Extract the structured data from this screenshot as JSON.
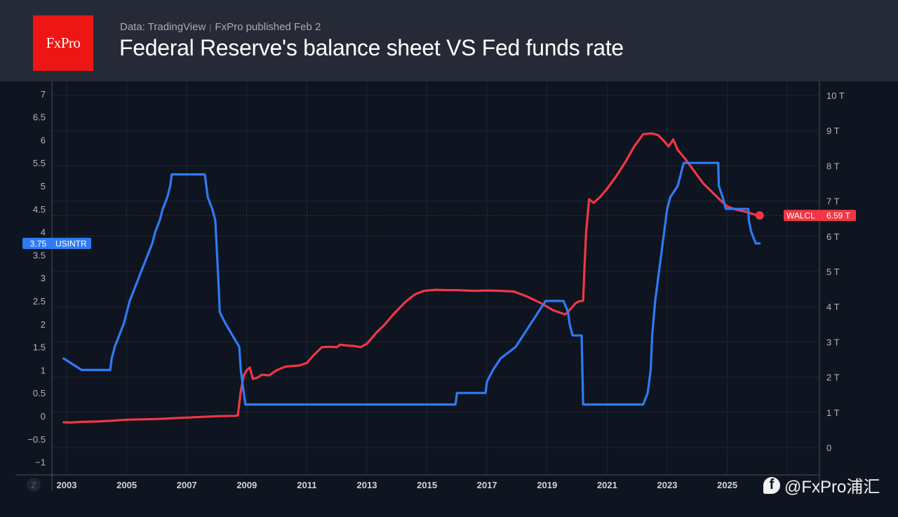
{
  "header": {
    "logo_text": "FxPro",
    "source": "Data: TradingView",
    "published": "FxPro published Feb 2",
    "title": "Federal Reserve's balance sheet VS Fed funds rate"
  },
  "watermark": {
    "icon": "facebook-icon",
    "text": "@FxPro浦汇"
  },
  "chart_data": {
    "type": "line",
    "title": "Federal Reserve's balance sheet VS Fed funds rate",
    "xlabel": "",
    "x_ticks": [
      "2003",
      "2005",
      "2007",
      "2009",
      "2011",
      "2013",
      "2015",
      "2017",
      "2019",
      "2021",
      "2023",
      "2025"
    ],
    "xlim": [
      2002.5,
      2027.0
    ],
    "left_axis": {
      "ticks": [
        "7",
        "6.5",
        "6",
        "5.5",
        "5",
        "4.5",
        "4",
        "3.5",
        "3",
        "2.5",
        "2",
        "1.5",
        "1",
        "0.5",
        "0",
        "−0.5",
        "−1"
      ],
      "ylim": [
        -1,
        7
      ]
    },
    "right_axis": {
      "ticks": [
        "10 T",
        "9 T",
        "8 T",
        "7 T",
        "6 T",
        "5 T",
        "4 T",
        "3 T",
        "2 T",
        "1 T",
        "0"
      ],
      "ylim": [
        -0.7,
        10.2
      ],
      "unit": "T"
    },
    "grid": true,
    "scale_button": "Z",
    "series": [
      {
        "name": "USINTR",
        "axis": "left",
        "color": "#2f7bf5",
        "last_value": "3.75",
        "step": true,
        "points": [
          [
            2002.9,
            1.25
          ],
          [
            2003.5,
            1.0
          ],
          [
            2004.45,
            1.0
          ],
          [
            2004.5,
            1.25
          ],
          [
            2004.6,
            1.5
          ],
          [
            2004.75,
            1.75
          ],
          [
            2004.9,
            2.0
          ],
          [
            2005.0,
            2.25
          ],
          [
            2005.1,
            2.5
          ],
          [
            2005.25,
            2.75
          ],
          [
            2005.4,
            3.0
          ],
          [
            2005.55,
            3.25
          ],
          [
            2005.7,
            3.5
          ],
          [
            2005.85,
            3.75
          ],
          [
            2005.95,
            4.0
          ],
          [
            2006.1,
            4.25
          ],
          [
            2006.2,
            4.5
          ],
          [
            2006.35,
            4.75
          ],
          [
            2006.45,
            5.0
          ],
          [
            2006.5,
            5.25
          ],
          [
            2007.6,
            5.25
          ],
          [
            2007.7,
            4.75
          ],
          [
            2007.85,
            4.5
          ],
          [
            2007.95,
            4.25
          ],
          [
            2008.05,
            3.0
          ],
          [
            2008.1,
            2.25
          ],
          [
            2008.3,
            2.0
          ],
          [
            2008.75,
            1.5
          ],
          [
            2008.8,
            1.0
          ],
          [
            2008.95,
            0.25
          ],
          [
            2015.95,
            0.25
          ],
          [
            2016.0,
            0.5
          ],
          [
            2016.95,
            0.5
          ],
          [
            2017.0,
            0.75
          ],
          [
            2017.2,
            1.0
          ],
          [
            2017.45,
            1.25
          ],
          [
            2017.95,
            1.5
          ],
          [
            2018.2,
            1.75
          ],
          [
            2018.45,
            2.0
          ],
          [
            2018.7,
            2.25
          ],
          [
            2018.95,
            2.5
          ],
          [
            2019.55,
            2.5
          ],
          [
            2019.7,
            2.25
          ],
          [
            2019.75,
            2.0
          ],
          [
            2019.85,
            1.75
          ],
          [
            2020.15,
            1.75
          ],
          [
            2020.2,
            0.25
          ],
          [
            2022.2,
            0.25
          ],
          [
            2022.35,
            0.5
          ],
          [
            2022.45,
            1.0
          ],
          [
            2022.5,
            1.75
          ],
          [
            2022.6,
            2.5
          ],
          [
            2022.75,
            3.25
          ],
          [
            2022.9,
            4.0
          ],
          [
            2023.0,
            4.5
          ],
          [
            2023.1,
            4.75
          ],
          [
            2023.35,
            5.0
          ],
          [
            2023.45,
            5.25
          ],
          [
            2023.55,
            5.5
          ],
          [
            2024.7,
            5.5
          ],
          [
            2024.72,
            5.0
          ],
          [
            2024.85,
            4.75
          ],
          [
            2024.95,
            4.5
          ],
          [
            2025.7,
            4.5
          ],
          [
            2025.72,
            4.25
          ],
          [
            2025.8,
            4.0
          ],
          [
            2025.95,
            3.75
          ],
          [
            2026.08,
            3.75
          ]
        ]
      },
      {
        "name": "WALCL",
        "axis": "right",
        "color": "#f23645",
        "last_value": "6.59 T",
        "step": false,
        "points": [
          [
            2002.9,
            0.72
          ],
          [
            2003.1,
            0.71
          ],
          [
            2003.5,
            0.73
          ],
          [
            2004.0,
            0.74
          ],
          [
            2004.5,
            0.76
          ],
          [
            2005.0,
            0.79
          ],
          [
            2005.5,
            0.8
          ],
          [
            2006.0,
            0.81
          ],
          [
            2006.5,
            0.83
          ],
          [
            2007.0,
            0.85
          ],
          [
            2007.5,
            0.87
          ],
          [
            2008.0,
            0.89
          ],
          [
            2008.6,
            0.9
          ],
          [
            2008.7,
            0.91
          ],
          [
            2008.8,
            1.6
          ],
          [
            2008.9,
            2.05
          ],
          [
            2009.0,
            2.2
          ],
          [
            2009.1,
            2.27
          ],
          [
            2009.2,
            1.95
          ],
          [
            2009.35,
            1.98
          ],
          [
            2009.5,
            2.07
          ],
          [
            2009.75,
            2.05
          ],
          [
            2010.0,
            2.2
          ],
          [
            2010.3,
            2.3
          ],
          [
            2010.75,
            2.33
          ],
          [
            2011.0,
            2.4
          ],
          [
            2011.2,
            2.6
          ],
          [
            2011.5,
            2.85
          ],
          [
            2011.75,
            2.86
          ],
          [
            2012.0,
            2.85
          ],
          [
            2012.1,
            2.92
          ],
          [
            2012.3,
            2.9
          ],
          [
            2012.6,
            2.88
          ],
          [
            2012.8,
            2.85
          ],
          [
            2013.0,
            2.95
          ],
          [
            2013.3,
            3.25
          ],
          [
            2013.6,
            3.5
          ],
          [
            2013.9,
            3.8
          ],
          [
            2014.3,
            4.15
          ],
          [
            2014.6,
            4.35
          ],
          [
            2014.9,
            4.45
          ],
          [
            2015.3,
            4.48
          ],
          [
            2015.6,
            4.47
          ],
          [
            2016.0,
            4.47
          ],
          [
            2016.6,
            4.45
          ],
          [
            2017.0,
            4.46
          ],
          [
            2017.5,
            4.45
          ],
          [
            2017.9,
            4.43
          ],
          [
            2018.3,
            4.3
          ],
          [
            2018.8,
            4.1
          ],
          [
            2019.2,
            3.9
          ],
          [
            2019.6,
            3.78
          ],
          [
            2019.8,
            3.95
          ],
          [
            2019.95,
            4.1
          ],
          [
            2020.05,
            4.15
          ],
          [
            2020.2,
            4.17
          ],
          [
            2020.25,
            5.2
          ],
          [
            2020.3,
            6.1
          ],
          [
            2020.4,
            7.05
          ],
          [
            2020.55,
            6.95
          ],
          [
            2020.75,
            7.1
          ],
          [
            2021.0,
            7.35
          ],
          [
            2021.3,
            7.7
          ],
          [
            2021.6,
            8.1
          ],
          [
            2021.9,
            8.55
          ],
          [
            2022.2,
            8.9
          ],
          [
            2022.5,
            8.92
          ],
          [
            2022.7,
            8.87
          ],
          [
            2022.9,
            8.7
          ],
          [
            2023.05,
            8.55
          ],
          [
            2023.2,
            8.75
          ],
          [
            2023.35,
            8.45
          ],
          [
            2023.6,
            8.2
          ],
          [
            2023.9,
            7.85
          ],
          [
            2024.2,
            7.5
          ],
          [
            2024.5,
            7.25
          ],
          [
            2024.8,
            7.0
          ],
          [
            2025.0,
            6.85
          ],
          [
            2025.3,
            6.75
          ],
          [
            2025.6,
            6.7
          ],
          [
            2025.9,
            6.62
          ],
          [
            2026.08,
            6.59
          ]
        ]
      }
    ],
    "labels": {
      "left_price_tag": {
        "value": "3.75",
        "series": "USINTR"
      },
      "right_price_tag": {
        "series": "WALCL",
        "value": "6.59 T"
      }
    }
  }
}
